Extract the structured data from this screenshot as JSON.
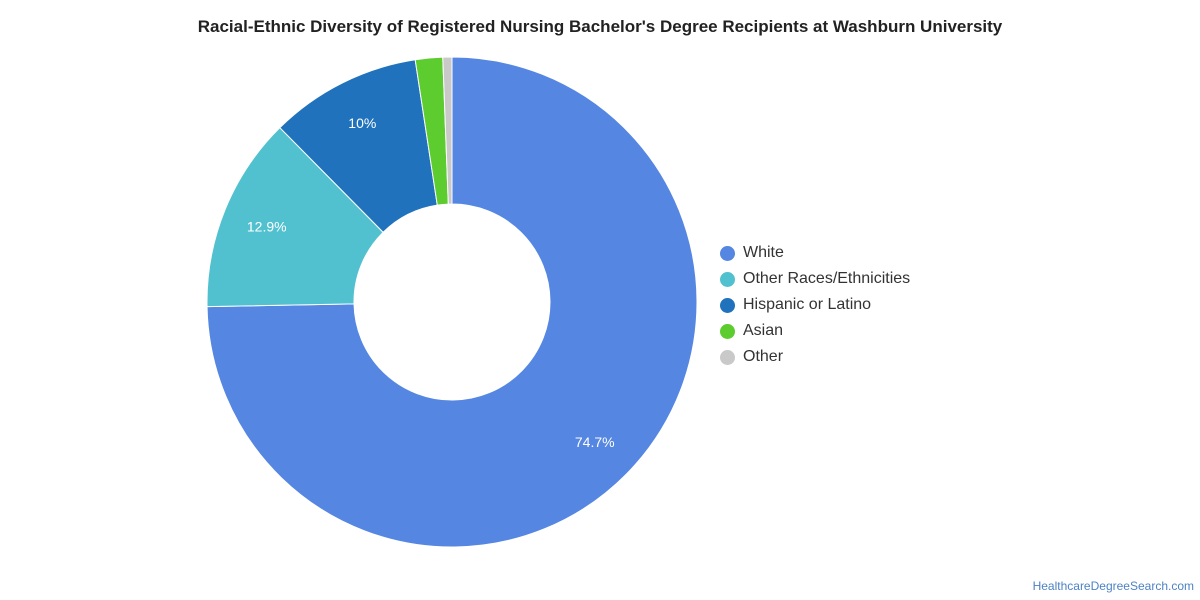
{
  "chart_data": {
    "type": "donut",
    "title": "Racial-Ethnic Diversity of Registered Nursing Bachelor's Degree Recipients at Washburn University",
    "series": [
      {
        "name": "White",
        "value": 74.7,
        "label": "74.7%",
        "color": "#5486e2"
      },
      {
        "name": "Other Races/Ethnicities",
        "value": 12.9,
        "label": "12.9%",
        "color": "#52c1cf"
      },
      {
        "name": "Hispanic or Latino",
        "value": 10.0,
        "label": "10%",
        "color": "#1f72bb"
      },
      {
        "name": "Asian",
        "value": 1.8,
        "label": "",
        "color": "#5ccc2e"
      },
      {
        "name": "Other",
        "value": 0.6,
        "label": "",
        "color": "#c9c9c9"
      }
    ],
    "legend_position": "right"
  },
  "source": "HealthcareDegreeSearch.com"
}
